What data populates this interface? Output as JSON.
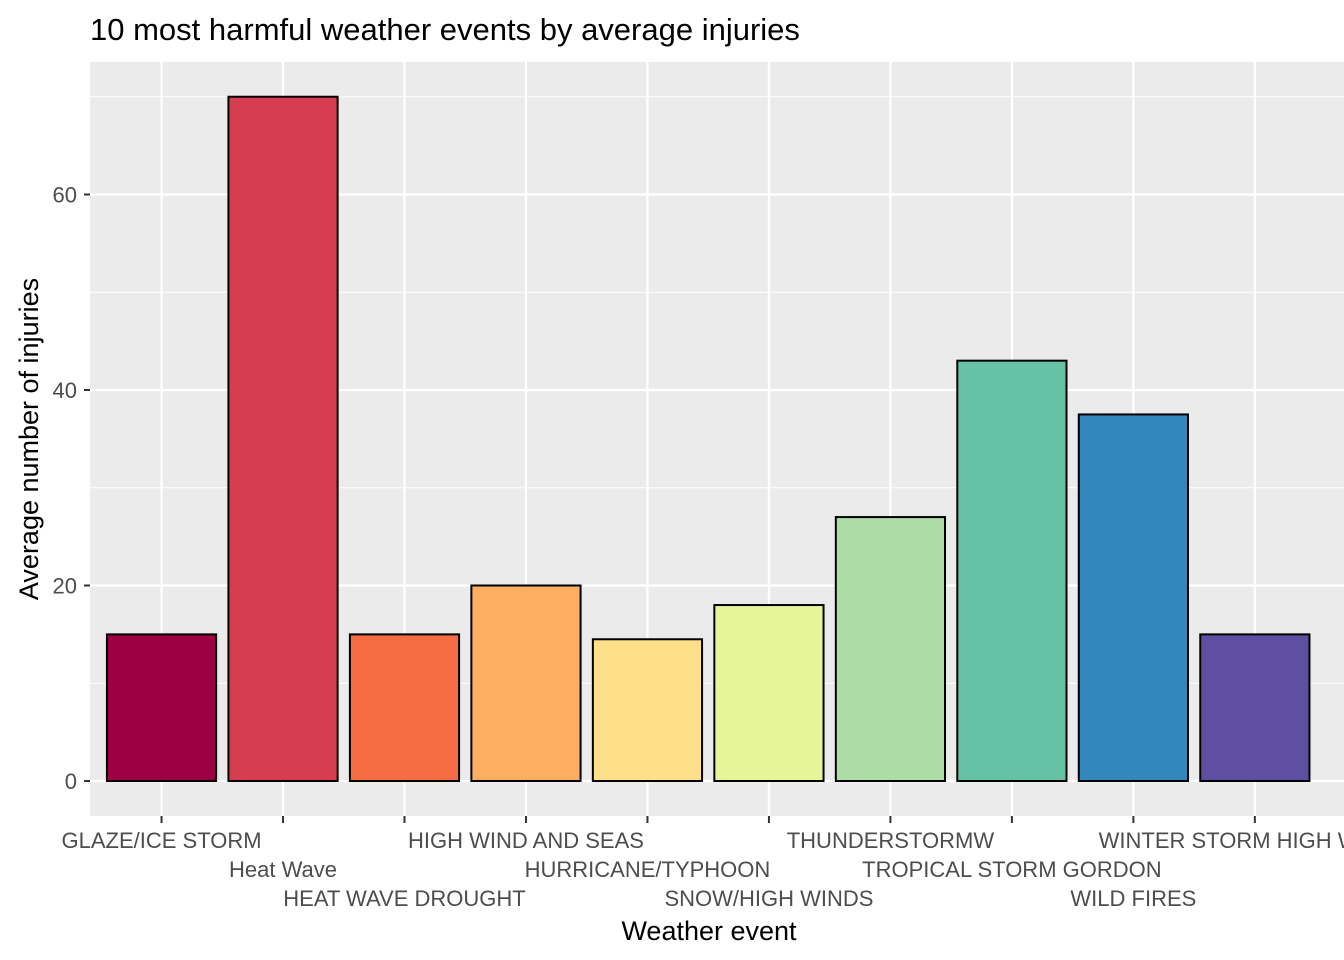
{
  "chart_data": {
    "type": "bar",
    "title": "10 most harmful weather events by average injuries",
    "xlabel": "Weather event",
    "ylabel": "Average number of injuries",
    "categories": [
      "GLAZE/ICE STORM",
      "Heat Wave",
      "HEAT WAVE DROUGHT",
      "HIGH WIND AND SEAS",
      "HURRICANE/TYPHOON",
      "SNOW/HIGH WINDS",
      "THUNDERSTORMW",
      "TROPICAL STORM GORDON",
      "WILD FIRES",
      "WINTER STORM HIGH WINDS"
    ],
    "values": [
      15,
      70,
      15,
      20,
      14.5,
      18,
      27,
      43,
      37.5,
      15
    ],
    "colors": [
      "#9E0142",
      "#D53E4F",
      "#F46D43",
      "#FDAE61",
      "#FEE08B",
      "#E6F598",
      "#ABDDA4",
      "#66C2A5",
      "#3288BD",
      "#5E4FA2"
    ],
    "ylim": [
      0,
      73.5
    ],
    "yticks": [
      0,
      20,
      40,
      60
    ],
    "grid": true,
    "panel_background": "#EBEBEB",
    "legend": "none"
  }
}
